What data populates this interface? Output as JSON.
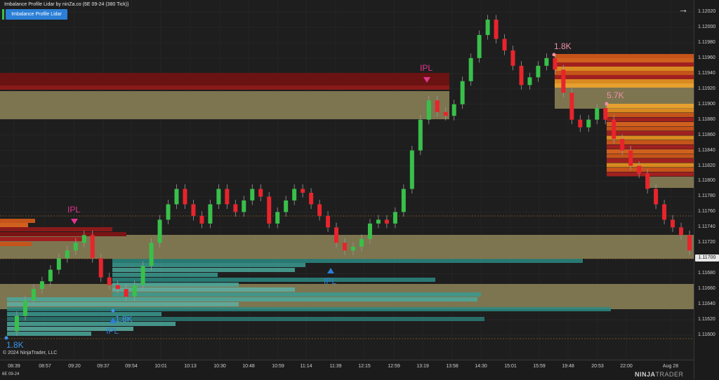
{
  "window": {
    "title": "Imbalance Profile Lidar by ninZa.co (6E 09-24 (380 Tick))",
    "indicator_button": "Imbalance Profile Lidar",
    "copyright": "© 2024 NinjaTrader, LLC",
    "instrument": "6E 09-24",
    "logo_ninja": "NINJA",
    "logo_trader": "TRADER",
    "nav_arrow": "→"
  },
  "price_axis": {
    "ticks": [
      "1.12020",
      "1.12000",
      "1.11980",
      "1.11960",
      "1.11940",
      "1.11920",
      "1.11900",
      "1.11880",
      "1.11860",
      "1.11840",
      "1.11820",
      "1.11800",
      "1.11780",
      "1.11760",
      "1.11740",
      "1.11720",
      "1.11700",
      "1.11680",
      "1.11660",
      "1.11640",
      "1.11620",
      "1.11600"
    ],
    "last_price": "1.11700"
  },
  "time_axis": {
    "ticks": [
      "08:39",
      "08:57",
      "09:20",
      "09:37",
      "09:54",
      "10:01",
      "10:13",
      "10:30",
      "10:48",
      "10:59",
      "11:14",
      "11:39",
      "12:15",
      "12:59",
      "13:19",
      "13:58",
      "14:30",
      "15:01",
      "15:59",
      "19:48",
      "20:53",
      "22:00",
      "Aug 28"
    ]
  },
  "annotations": {
    "ipl_1": "IPL",
    "ipl_2": "IPL",
    "ipl_3": "IPL",
    "ipl_4": "IPL",
    "vol_1": "1.8K",
    "vol_2": "1.8K",
    "vol_3": "1.8K",
    "vol_4": "5.7K"
  },
  "colors": {
    "bull": "#39c04a",
    "bear": "#e8242c",
    "zone": "#7d7550",
    "teal": "#2b8a82",
    "dark_red": "#7a1414",
    "ipl_pink": "#e0358f",
    "ipl_blue": "#2b7fd6"
  },
  "chart_data": {
    "type": "candlestick",
    "instrument": "6E 09-24 (380 Tick)",
    "ylim": [
      1.1159,
      1.1203
    ],
    "close_path": [
      1.11605,
      1.11625,
      1.11645,
      1.1166,
      1.1167,
      1.11685,
      1.117,
      1.1171,
      1.1172,
      1.1173,
      1.117,
      1.11675,
      1.11665,
      1.1166,
      1.1165,
      1.11665,
      1.1169,
      1.1172,
      1.1175,
      1.1177,
      1.1179,
      1.1177,
      1.11755,
      1.11745,
      1.1177,
      1.1179,
      1.1177,
      1.1176,
      1.11775,
      1.1179,
      1.1178,
      1.11745,
      1.1176,
      1.11775,
      1.1179,
      1.11785,
      1.1177,
      1.11755,
      1.1174,
      1.1172,
      1.1171,
      1.11715,
      1.11725,
      1.11745,
      1.1175,
      1.11745,
      1.1176,
      1.1179,
      1.1184,
      1.1188,
      1.11905,
      1.1189,
      1.11885,
      1.119,
      1.1193,
      1.1196,
      1.1199,
      1.1201,
      1.11985,
      1.1197,
      1.1195,
      1.11925,
      1.11935,
      1.1195,
      1.1196,
      1.11945,
      1.11915,
      1.1188,
      1.1187,
      1.1188,
      1.11895,
      1.1188,
      1.11855,
      1.1184,
      1.1182,
      1.1181,
      1.1179,
      1.1177,
      1.1175,
      1.1174,
      1.1173,
      1.1171
    ]
  }
}
